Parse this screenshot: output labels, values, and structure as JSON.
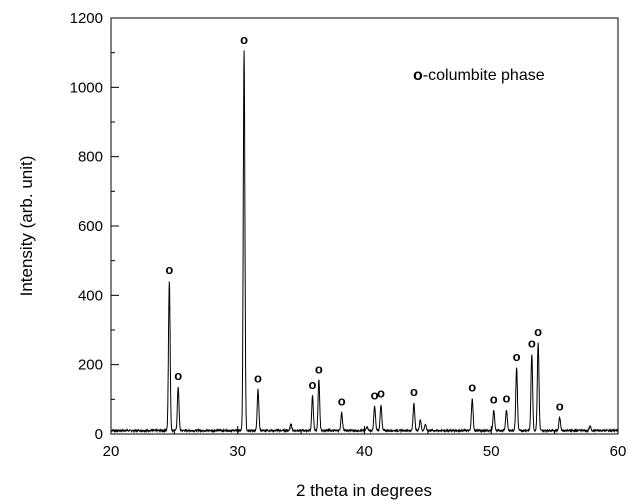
{
  "chart_data": {
    "type": "line",
    "title": "",
    "xlabel": "2 theta in degrees",
    "ylabel": "Intensity (arb. unit)",
    "xlim": [
      20,
      60
    ],
    "ylim": [
      0,
      1200
    ],
    "xticks": [
      "20",
      "30",
      "40",
      "50",
      "60"
    ],
    "yticks": [
      "0",
      "200",
      "400",
      "600",
      "800",
      "1000",
      "1200"
    ],
    "grid": false,
    "legend": "none",
    "annotation": {
      "marker": "o",
      "text": "-columbite phase"
    },
    "baseline": 10,
    "series": [
      {
        "line_color": "#000000",
        "peaks": [
          {
            "x": 24.6,
            "y": 442,
            "marked": true
          },
          {
            "x": 25.3,
            "y": 136,
            "marked": true
          },
          {
            "x": 30.5,
            "y": 1105,
            "marked": true
          },
          {
            "x": 31.6,
            "y": 128,
            "marked": true
          },
          {
            "x": 34.2,
            "y": 28,
            "marked": false
          },
          {
            "x": 35.9,
            "y": 110,
            "marked": true
          },
          {
            "x": 36.4,
            "y": 155,
            "marked": true
          },
          {
            "x": 38.2,
            "y": 62,
            "marked": true
          },
          {
            "x": 40.2,
            "y": 22,
            "marked": false
          },
          {
            "x": 40.8,
            "y": 80,
            "marked": true
          },
          {
            "x": 41.3,
            "y": 85,
            "marked": true
          },
          {
            "x": 43.9,
            "y": 90,
            "marked": true
          },
          {
            "x": 44.4,
            "y": 42,
            "marked": false
          },
          {
            "x": 44.8,
            "y": 28,
            "marked": false
          },
          {
            "x": 48.5,
            "y": 102,
            "marked": true
          },
          {
            "x": 50.2,
            "y": 68,
            "marked": true
          },
          {
            "x": 51.2,
            "y": 70,
            "marked": true
          },
          {
            "x": 52.0,
            "y": 190,
            "marked": true
          },
          {
            "x": 53.2,
            "y": 230,
            "marked": true
          },
          {
            "x": 53.7,
            "y": 262,
            "marked": true
          },
          {
            "x": 55.4,
            "y": 48,
            "marked": true
          },
          {
            "x": 57.8,
            "y": 22,
            "marked": false
          }
        ]
      }
    ]
  }
}
